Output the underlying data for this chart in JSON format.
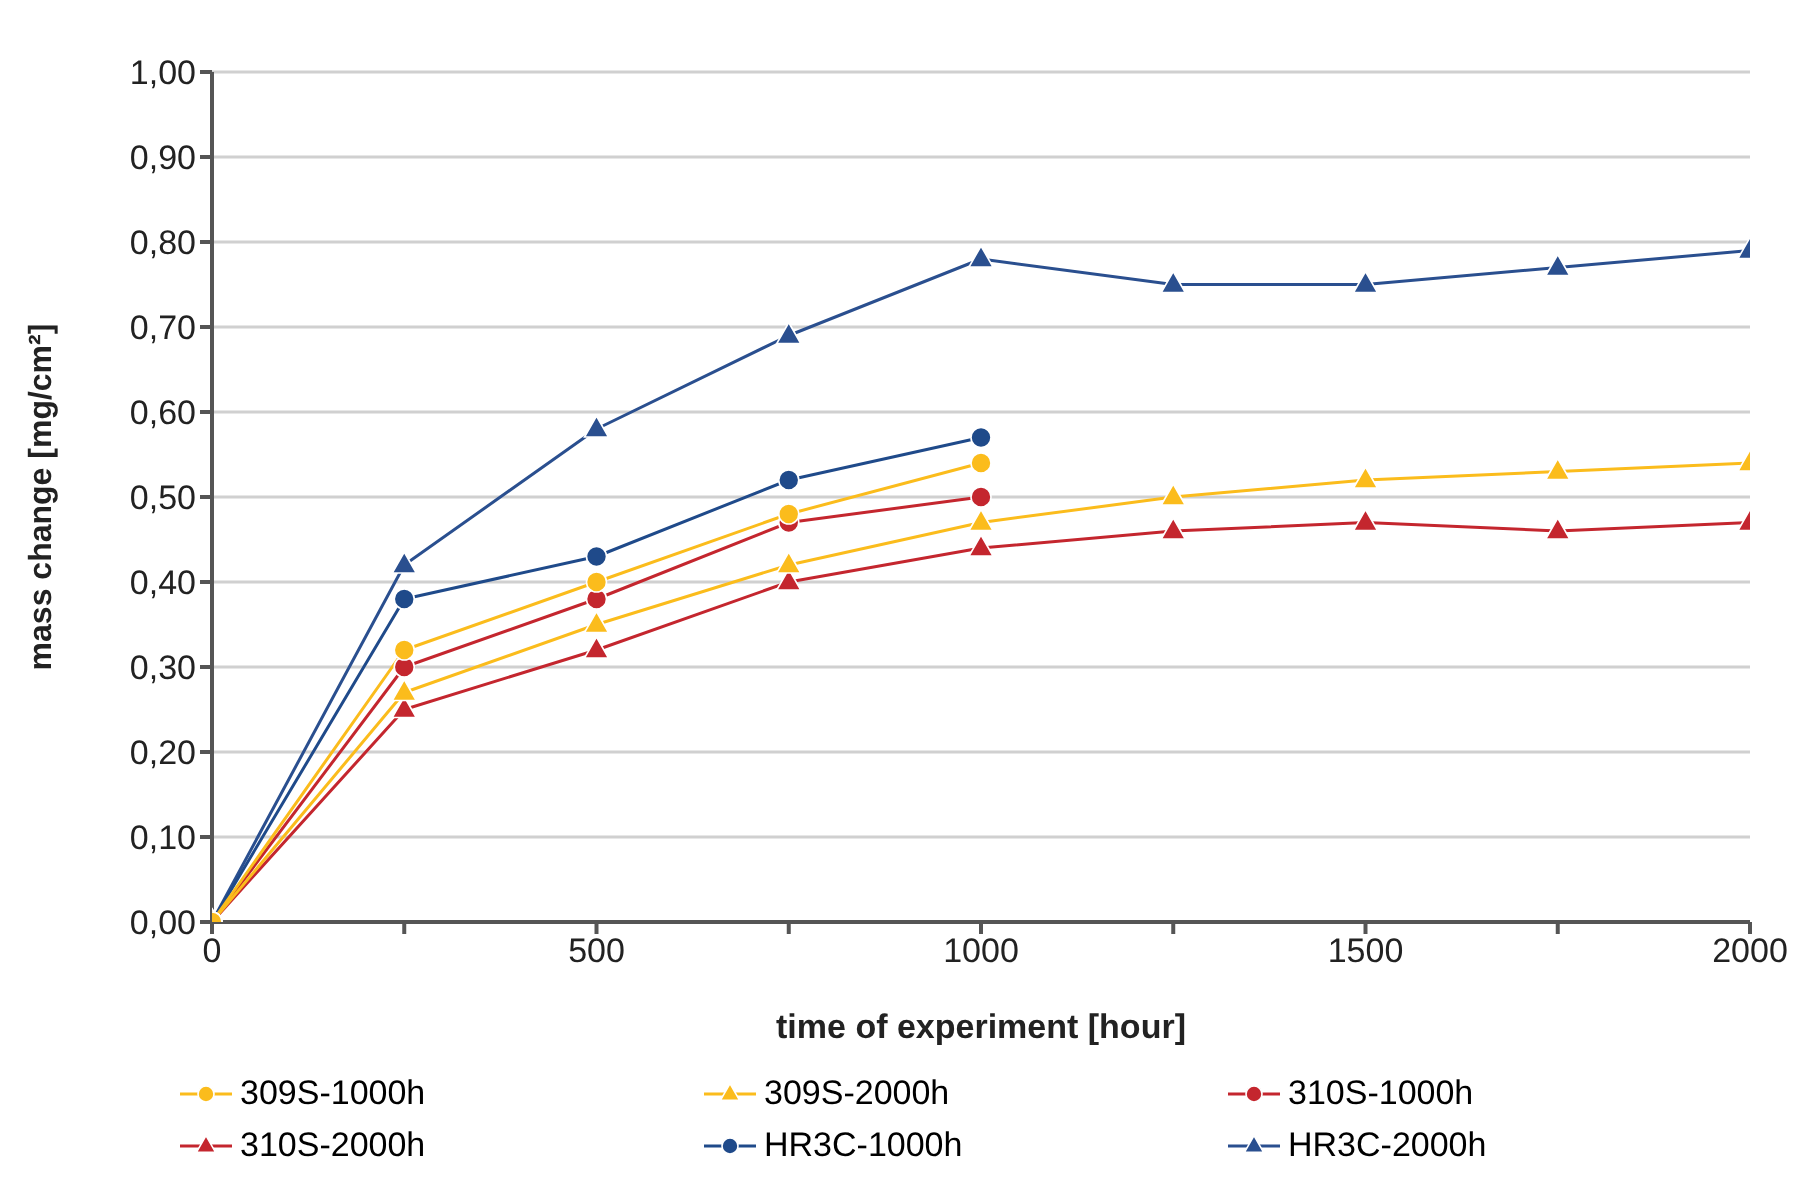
{
  "chart_data": {
    "type": "line",
    "xlabel": "time of experiment [hour]",
    "ylabel": "mass change [mg/cm²]",
    "xlim": [
      0,
      2000
    ],
    "xticks": [
      0,
      {
        "value": 250,
        "label": null
      },
      500,
      {
        "value": 750,
        "label": null
      },
      1000,
      {
        "value": 1250,
        "label": null
      },
      1500,
      {
        "value": 1750,
        "label": null
      },
      2000
    ],
    "ylim": [
      0,
      1
    ],
    "yticks": [
      {
        "value": 0,
        "label": "0,00"
      },
      {
        "value": 0.1,
        "label": "0,10"
      },
      {
        "value": 0.2,
        "label": "0,20"
      },
      {
        "value": 0.3,
        "label": "0,30"
      },
      {
        "value": 0.4,
        "label": "0,40"
      },
      {
        "value": 0.5,
        "label": "0,50"
      },
      {
        "value": 0.6,
        "label": "0,60"
      },
      {
        "value": 0.7,
        "label": "0,70"
      },
      {
        "value": 0.8,
        "label": "0,80"
      },
      {
        "value": 0.9,
        "label": "0,90"
      },
      {
        "value": 1,
        "label": "1,00"
      }
    ],
    "grid": "y",
    "legend": "bottom",
    "series": [
      {
        "name": "309S-1000h",
        "color": "#fbbc1c",
        "marker": "circle",
        "x": [
          0,
          250,
          500,
          750,
          1000
        ],
        "values": [
          0,
          0.32,
          0.4,
          0.48,
          0.54
        ]
      },
      {
        "name": "309S-2000h",
        "color": "#fbbc1c",
        "marker": "triangle",
        "x": [
          0,
          250,
          500,
          750,
          1000,
          1250,
          1500,
          1750,
          2000
        ],
        "values": [
          0,
          0.27,
          0.35,
          0.42,
          0.47,
          0.5,
          0.52,
          0.53,
          0.54
        ]
      },
      {
        "name": "310S-1000h",
        "color": "#c4262e",
        "marker": "circle",
        "x": [
          0,
          250,
          500,
          750,
          1000
        ],
        "values": [
          0,
          0.3,
          0.38,
          0.47,
          0.5
        ]
      },
      {
        "name": "310S-2000h",
        "color": "#c4262e",
        "marker": "triangle",
        "x": [
          0,
          250,
          500,
          750,
          1000,
          1250,
          1500,
          1750,
          2000
        ],
        "values": [
          0,
          0.25,
          0.32,
          0.4,
          0.44,
          0.46,
          0.47,
          0.46,
          0.47
        ]
      },
      {
        "name": "HR3C-1000h",
        "color": "#1f4a8a",
        "marker": "circle",
        "x": [
          0,
          250,
          500,
          750,
          1000
        ],
        "values": [
          0,
          0.38,
          0.43,
          0.52,
          0.57
        ]
      },
      {
        "name": "HR3C-2000h",
        "color": "#2a4f8f",
        "marker": "triangle",
        "x": [
          0,
          250,
          500,
          750,
          1000,
          1250,
          1500,
          1750,
          2000
        ],
        "values": [
          0,
          0.42,
          0.58,
          0.69,
          0.78,
          0.75,
          0.75,
          0.77,
          0.79
        ]
      }
    ]
  }
}
